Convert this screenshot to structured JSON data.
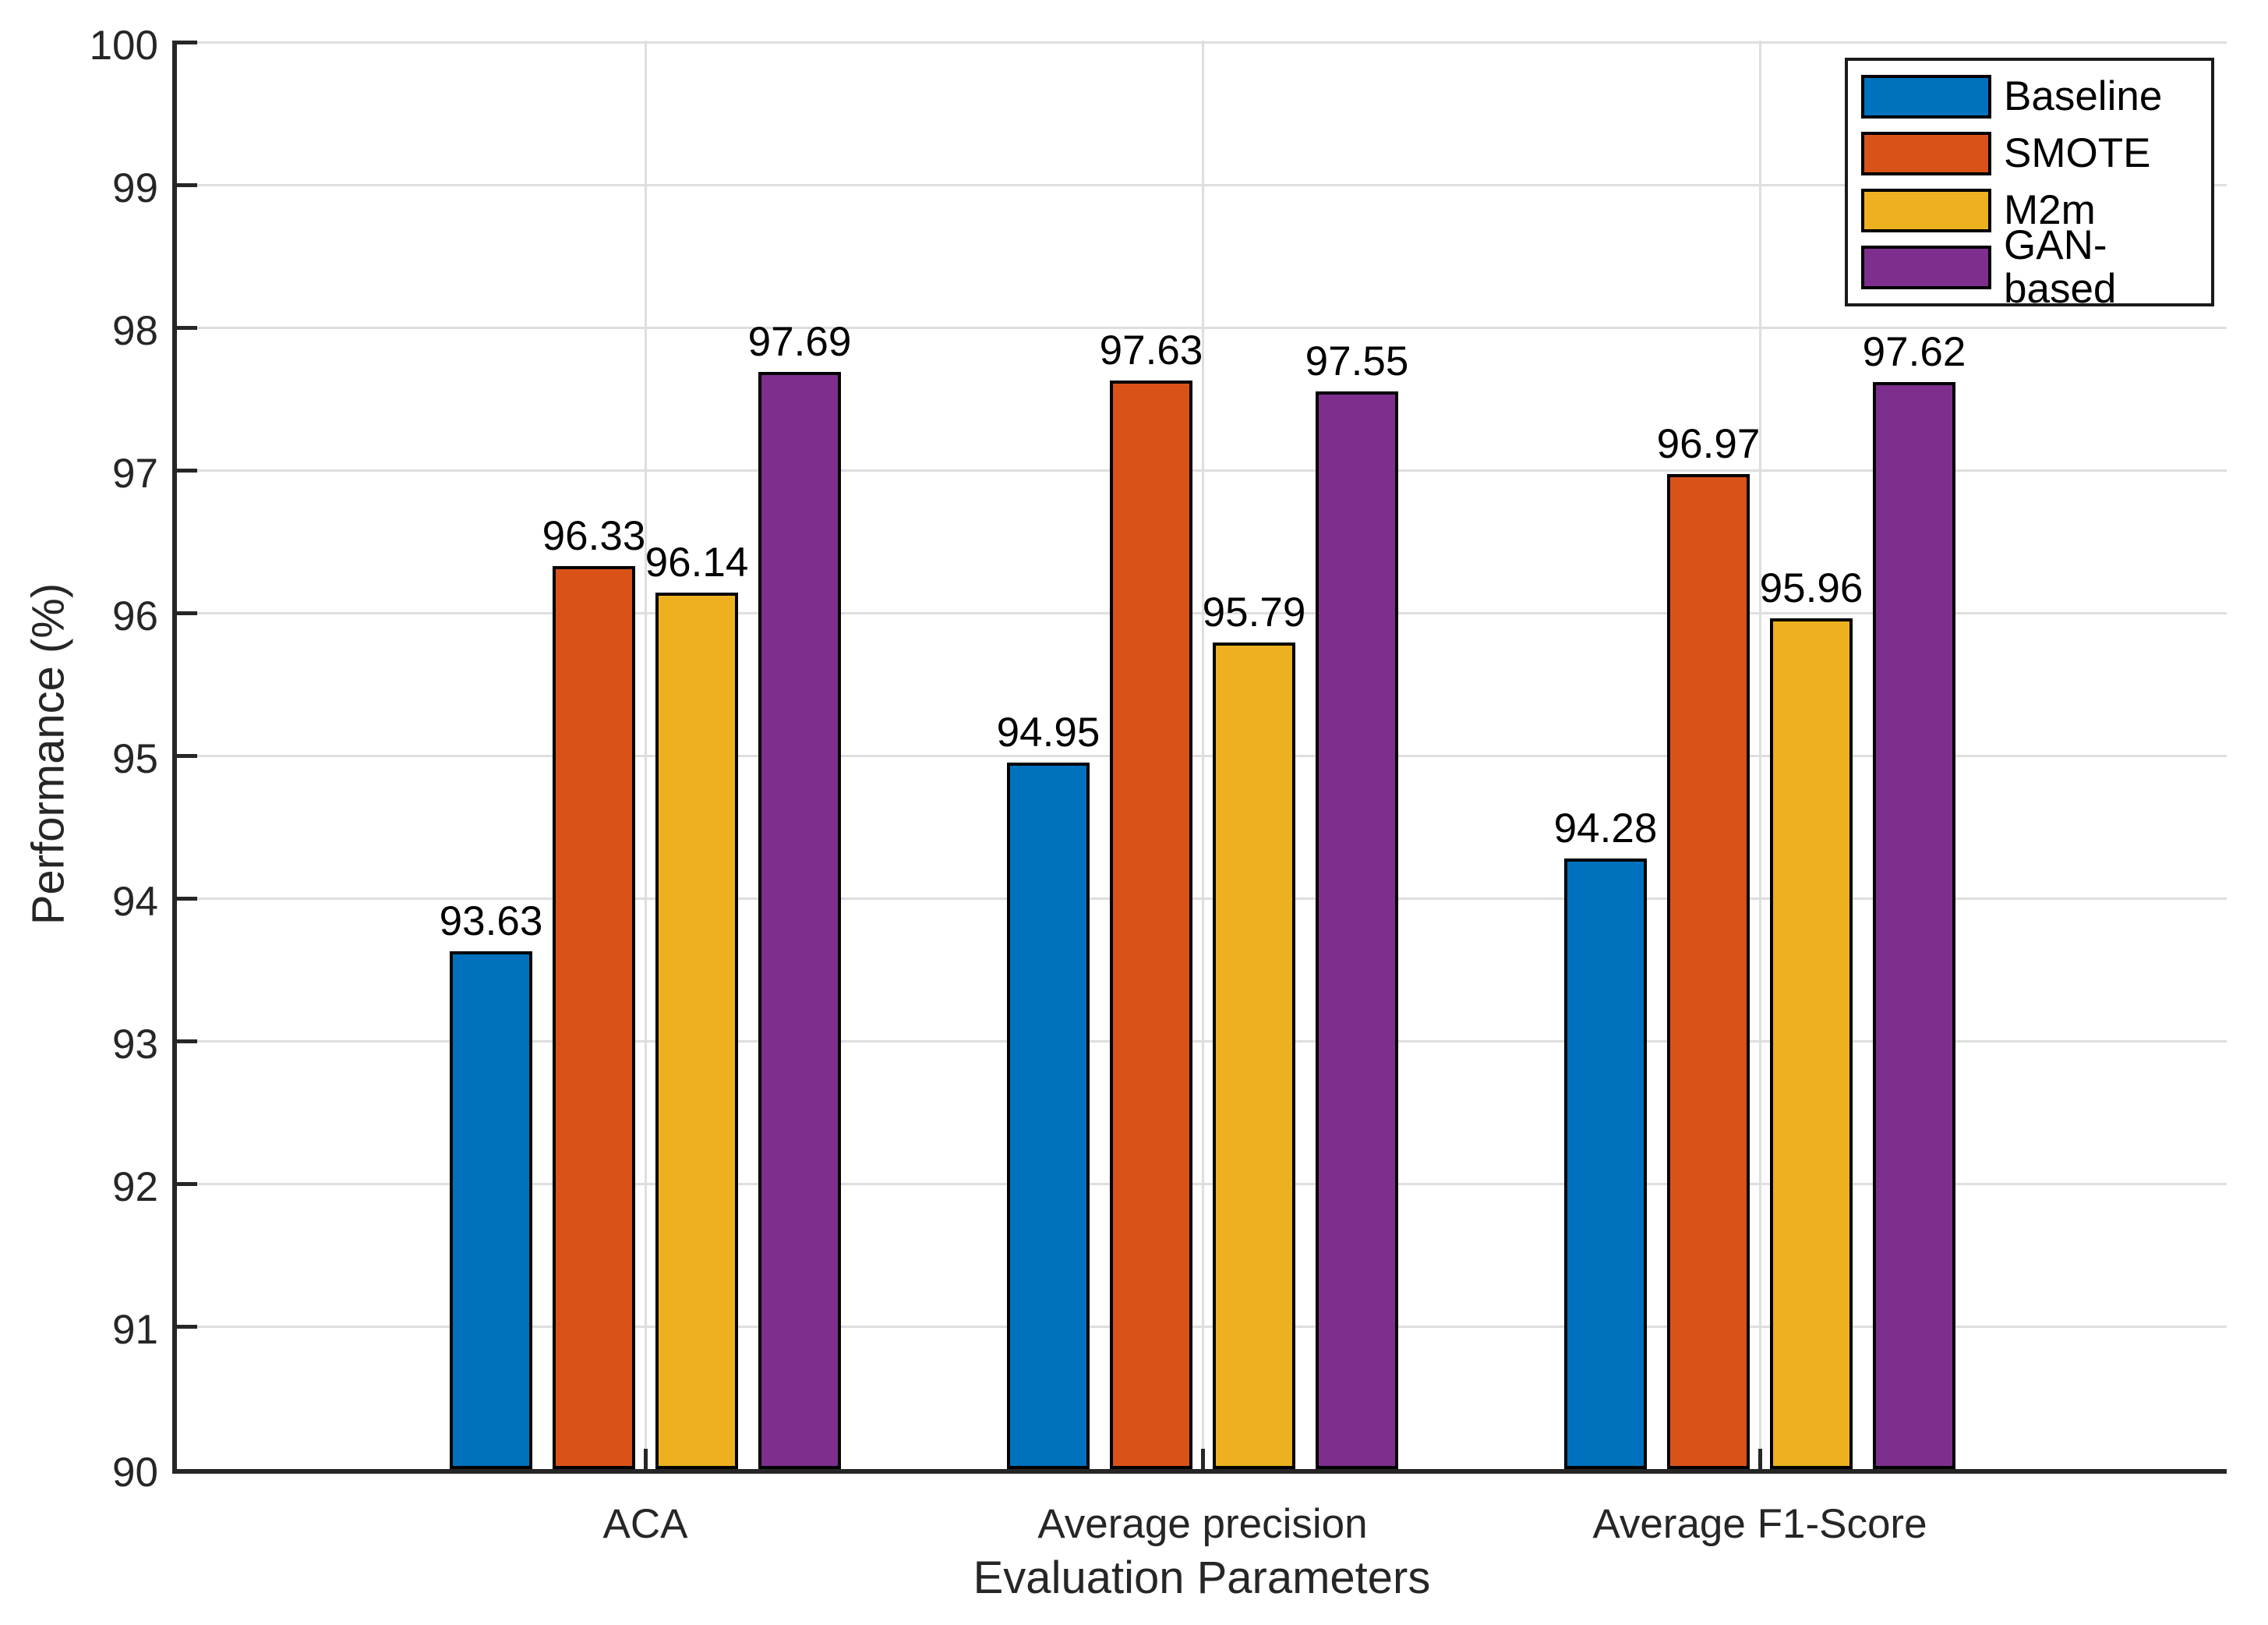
{
  "figure": {
    "background_color": "#ffffff",
    "axis_color": "#262626",
    "grid_color": "#dedede",
    "bar_edge_color": "#000000"
  },
  "chart_data": {
    "type": "bar",
    "title": "",
    "xlabel": "Evaluation Parameters",
    "ylabel": "Performance (%)",
    "categories": [
      "ACA",
      "Average precision",
      "Average F1-Score"
    ],
    "series": [
      {
        "name": "Baseline",
        "color": "#0072BD",
        "values": [
          93.63,
          94.95,
          94.28
        ],
        "labels": [
          "93.63",
          "94.95",
          "94.28"
        ]
      },
      {
        "name": "SMOTE",
        "color": "#D95319",
        "values": [
          96.33,
          97.63,
          96.97
        ],
        "labels": [
          "96.33",
          "97.63",
          "96.97"
        ]
      },
      {
        "name": "M2m",
        "color": "#EDB120",
        "values": [
          96.14,
          95.79,
          95.96
        ],
        "labels": [
          "96.14",
          "95.79",
          "95.96"
        ]
      },
      {
        "name": "GAN-based",
        "color": "#7E2F8E",
        "values": [
          97.69,
          97.55,
          97.62
        ],
        "labels": [
          "97.69",
          "97.55",
          "97.62"
        ]
      }
    ],
    "ylim": [
      90,
      100
    ],
    "yticks": [
      90,
      91,
      92,
      93,
      94,
      95,
      96,
      97,
      98,
      99,
      100
    ],
    "ytick_labels": [
      "90",
      "91",
      "92",
      "93",
      "94",
      "95",
      "96",
      "97",
      "98",
      "99",
      "100"
    ],
    "grid": "on",
    "legend": {
      "position": "top-right",
      "entries": [
        "Baseline",
        "SMOTE",
        "M2m",
        "GAN-based"
      ]
    }
  }
}
